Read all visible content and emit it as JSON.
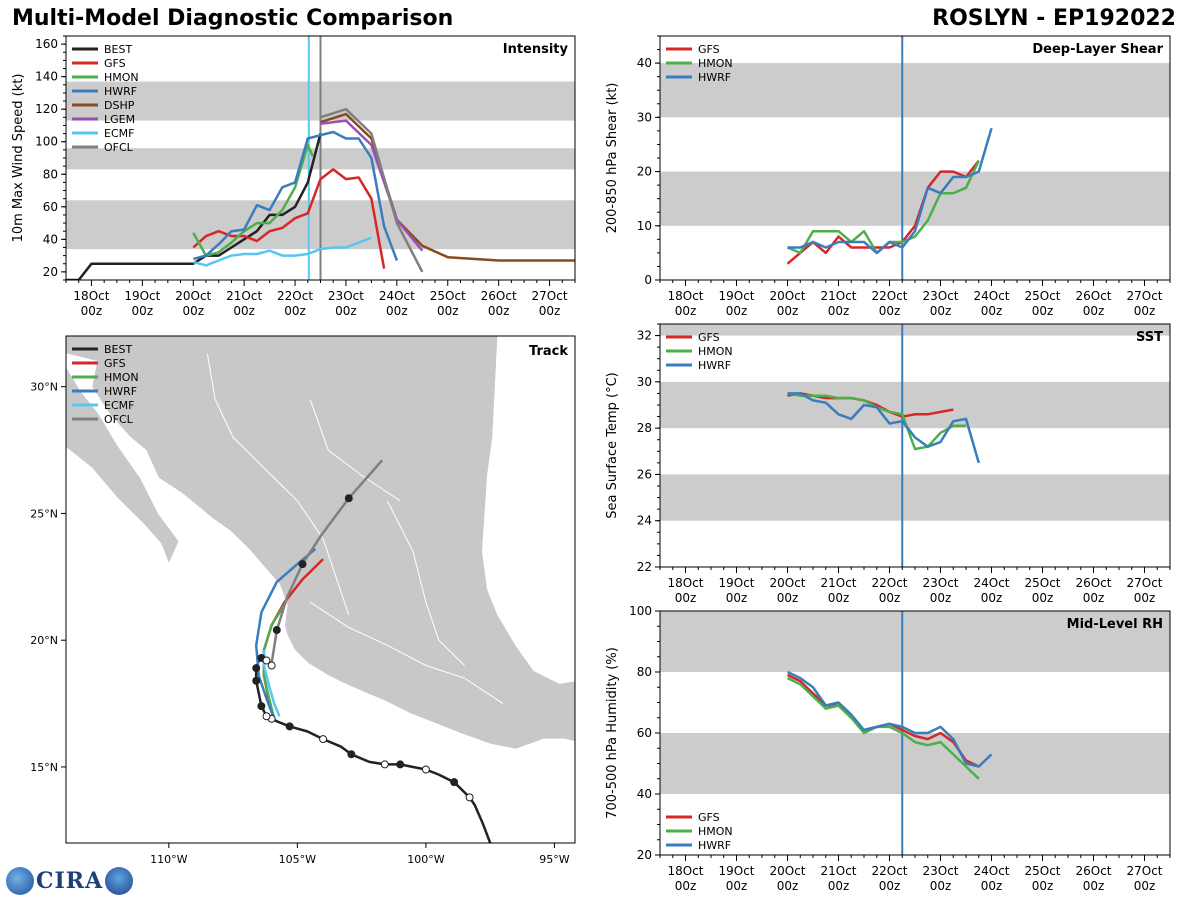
{
  "header": {
    "title": "Multi-Model Diagnostic Comparison",
    "storm": "ROSLYN - EP192022"
  },
  "logo": {
    "text": "CIRA"
  },
  "colors": {
    "BEST": "#222222",
    "GFS": "#d62728",
    "HMON": "#4daf4a",
    "HWRF": "#3a7dbd",
    "DSHP": "#8b4a1e",
    "LGEM": "#9b4fb4",
    "ECMF": "#56c8f0",
    "OFCL": "#7f7f7f",
    "band": "#cccccc",
    "land": "#c8c8c8",
    "border": "#ffffff"
  },
  "time_axis": {
    "labels": [
      "18Oct\n00z",
      "19Oct\n00z",
      "20Oct\n00z",
      "21Oct\n00z",
      "22Oct\n00z",
      "23Oct\n00z",
      "24Oct\n00z",
      "25Oct\n00z",
      "26Oct\n00z",
      "27Oct\n00z"
    ]
  },
  "chart_data": [
    {
      "id": "intensity",
      "type": "line",
      "title": "Intensity",
      "ylabel": "10m Max Wind Speed (kt)",
      "xlim": [
        -0.5,
        9.5
      ],
      "ylim": [
        15,
        165
      ],
      "yticks": [
        20,
        40,
        60,
        80,
        100,
        120,
        140,
        160
      ],
      "bands": [
        [
          34,
          64
        ],
        [
          83,
          96
        ],
        [
          113,
          137
        ]
      ],
      "vlines": [
        {
          "x": 4.27,
          "color": "ECMF"
        },
        {
          "x": 4.5,
          "color": "OFCL"
        }
      ],
      "legend": [
        "BEST",
        "GFS",
        "HMON",
        "HWRF",
        "DSHP",
        "LGEM",
        "ECMF",
        "OFCL"
      ],
      "series": [
        {
          "name": "BEST",
          "x": [
            -0.5,
            -0.25,
            0,
            0.25,
            0.5,
            0.75,
            1,
            1.25,
            1.5,
            1.75,
            2,
            2.25,
            2.5,
            2.75,
            3,
            3.25,
            3.5,
            3.75,
            4,
            4.25,
            4.5
          ],
          "y": [
            15,
            15,
            25,
            25,
            25,
            25,
            25,
            25,
            25,
            25,
            25,
            30,
            30,
            35,
            40,
            45,
            55,
            55,
            60,
            75,
            105
          ]
        },
        {
          "name": "GFS",
          "x": [
            2,
            2.25,
            2.5,
            2.75,
            3,
            3.25,
            3.5,
            3.75,
            4,
            4.25,
            4.5,
            4.75,
            5,
            5.25,
            5.5,
            5.75
          ],
          "y": [
            35,
            42,
            45,
            42,
            42,
            39,
            45,
            47,
            53,
            56,
            77,
            83,
            77,
            78,
            65,
            22
          ]
        },
        {
          "name": "HMON",
          "x": [
            2,
            2.25,
            2.5,
            2.75,
            3,
            3.25,
            3.5,
            3.75,
            4,
            4.25,
            4.35
          ],
          "y": [
            44,
            30,
            32,
            38,
            45,
            50,
            50,
            58,
            72,
            98,
            91
          ]
        },
        {
          "name": "HWRF",
          "x": [
            2,
            2.25,
            2.5,
            2.75,
            3,
            3.25,
            3.5,
            3.75,
            4,
            4.25,
            4.5,
            4.75,
            5,
            5.25,
            5.5,
            5.75,
            6
          ],
          "y": [
            28,
            30,
            37,
            45,
            46,
            61,
            58,
            72,
            75,
            102,
            104,
            106,
            102,
            102,
            90,
            48,
            27
          ]
        },
        {
          "name": "DSHP",
          "x": [
            4.5,
            5,
            5.5,
            6,
            6.5,
            7,
            7.5,
            8,
            8.5,
            9,
            9.5
          ],
          "y": [
            112,
            117,
            102,
            52,
            36,
            29,
            28,
            27,
            27,
            27,
            27
          ]
        },
        {
          "name": "LGEM",
          "x": [
            4.5,
            5,
            5.5,
            6,
            6.5
          ],
          "y": [
            111,
            113,
            98,
            52,
            33
          ]
        },
        {
          "name": "ECMF",
          "x": [
            2,
            2.25,
            2.5,
            2.75,
            3,
            3.25,
            3.5,
            3.75,
            4,
            4.25,
            4.5,
            4.75,
            5,
            5.25,
            5.5
          ],
          "y": [
            26,
            24,
            27,
            30,
            31,
            31,
            33,
            30,
            30,
            31,
            34,
            35,
            35,
            38,
            41
          ]
        },
        {
          "name": "OFCL",
          "x": [
            4.5,
            5,
            5.5,
            6,
            6.5
          ],
          "y": [
            115,
            120,
            105,
            50,
            20
          ]
        }
      ]
    },
    {
      "id": "shear",
      "type": "line",
      "title": "Deep-Layer Shear",
      "ylabel": "200-850 hPa Shear (kt)",
      "xlim": [
        -0.5,
        9.5
      ],
      "ylim": [
        0,
        45
      ],
      "yticks": [
        0,
        10,
        20,
        30,
        40
      ],
      "bands": [
        [
          10,
          20
        ],
        [
          30,
          40
        ]
      ],
      "vlines": [
        {
          "x": 4.25,
          "color": "HWRF"
        }
      ],
      "legend": [
        "GFS",
        "HMON",
        "HWRF"
      ],
      "series": [
        {
          "name": "GFS",
          "x": [
            2,
            2.25,
            2.5,
            2.75,
            3,
            3.25,
            3.5,
            3.75,
            4,
            4.25,
            4.5,
            4.75,
            5,
            5.25,
            5.5,
            5.75
          ],
          "y": [
            3,
            5,
            7,
            5,
            8,
            6,
            6,
            6,
            6,
            7,
            10,
            17,
            20,
            20,
            19,
            22
          ]
        },
        {
          "name": "HMON",
          "x": [
            2,
            2.25,
            2.5,
            2.75,
            3,
            3.25,
            3.5,
            3.75,
            4,
            4.25,
            4.5,
            4.75,
            5,
            5.25,
            5.5,
            5.75
          ],
          "y": [
            6,
            5,
            9,
            9,
            9,
            7,
            9,
            5,
            7,
            7,
            8,
            11,
            16,
            16,
            17,
            22
          ]
        },
        {
          "name": "HWRF",
          "x": [
            2,
            2.25,
            2.5,
            2.75,
            3,
            3.25,
            3.5,
            3.75,
            4,
            4.25,
            4.5,
            4.75,
            5,
            5.25,
            5.5,
            5.75,
            6
          ],
          "y": [
            6,
            6,
            7,
            6,
            7,
            7,
            7,
            5,
            7,
            6,
            9,
            17,
            16,
            19,
            19,
            20,
            28
          ]
        }
      ]
    },
    {
      "id": "sst",
      "type": "line",
      "title": "SST",
      "ylabel": "Sea Surface Temp (°C)",
      "xlim": [
        -0.5,
        9.5
      ],
      "ylim": [
        22,
        32.5
      ],
      "yticks": [
        22,
        24,
        26,
        28,
        30,
        32
      ],
      "bands": [
        [
          24,
          26
        ],
        [
          28,
          30
        ],
        [
          32,
          32.5
        ]
      ],
      "vlines": [
        {
          "x": 4.25,
          "color": "HWRF"
        }
      ],
      "legend": [
        "GFS",
        "HMON",
        "HWRF"
      ],
      "series": [
        {
          "name": "GFS",
          "x": [
            2,
            2.25,
            2.5,
            2.75,
            3,
            3.25,
            3.5,
            3.75,
            4,
            4.25,
            4.5,
            4.75,
            5,
            5.25
          ],
          "y": [
            29.4,
            29.5,
            29.4,
            29.3,
            29.3,
            29.3,
            29.2,
            29.0,
            28.7,
            28.5,
            28.6,
            28.6,
            28.7,
            28.8
          ]
        },
        {
          "name": "HMON",
          "x": [
            2,
            2.25,
            2.5,
            2.75,
            3,
            3.25,
            3.5,
            3.75,
            4,
            4.25,
            4.5,
            4.75,
            5,
            5.25,
            5.5
          ],
          "y": [
            29.5,
            29.4,
            29.4,
            29.4,
            29.3,
            29.3,
            29.2,
            28.9,
            28.7,
            28.6,
            27.1,
            27.2,
            27.8,
            28.1,
            28.1
          ]
        },
        {
          "name": "HWRF",
          "x": [
            2,
            2.25,
            2.5,
            2.75,
            3,
            3.25,
            3.5,
            3.75,
            4,
            4.25,
            4.5,
            4.75,
            5,
            5.25,
            5.5,
            5.75
          ],
          "y": [
            29.5,
            29.5,
            29.2,
            29.1,
            28.6,
            28.4,
            29.0,
            28.9,
            28.2,
            28.3,
            27.6,
            27.2,
            27.4,
            28.3,
            28.4,
            26.5
          ]
        }
      ]
    },
    {
      "id": "rh",
      "type": "line",
      "title": "Mid-Level RH",
      "ylabel": "700-500 hPa Humidity (%)",
      "xlim": [
        -0.5,
        9.5
      ],
      "ylim": [
        20,
        100
      ],
      "yticks": [
        20,
        40,
        60,
        80,
        100
      ],
      "bands": [
        [
          40,
          60
        ],
        [
          80,
          100
        ]
      ],
      "vlines": [
        {
          "x": 4.25,
          "color": "HWRF"
        }
      ],
      "legend": [
        "GFS",
        "HMON",
        "HWRF"
      ],
      "legend_pos": "bottom-left",
      "series": [
        {
          "name": "GFS",
          "x": [
            2,
            2.25,
            2.5,
            2.75,
            3,
            3.25,
            3.5,
            3.75,
            4,
            4.25,
            4.5,
            4.75,
            5,
            5.25,
            5.5,
            5.75
          ],
          "y": [
            79,
            77,
            73,
            69,
            69,
            65,
            61,
            62,
            63,
            61,
            59,
            58,
            60,
            57,
            51,
            49
          ]
        },
        {
          "name": "HMON",
          "x": [
            2,
            2.25,
            2.5,
            2.75,
            3,
            3.25,
            3.5,
            3.75,
            4,
            4.25,
            4.5,
            4.75,
            5,
            5.25,
            5.5,
            5.75
          ],
          "y": [
            78,
            76,
            72,
            68,
            69,
            65,
            60,
            62,
            62,
            60,
            57,
            56,
            57,
            53,
            49,
            45
          ]
        },
        {
          "name": "HWRF",
          "x": [
            2,
            2.25,
            2.5,
            2.75,
            3,
            3.25,
            3.5,
            3.75,
            4,
            4.25,
            4.5,
            4.75,
            5,
            5.25,
            5.5,
            5.75,
            6
          ],
          "y": [
            80,
            78,
            75,
            69,
            70,
            66,
            61,
            62,
            63,
            62,
            60,
            60,
            62,
            58,
            50,
            49,
            53
          ]
        }
      ]
    },
    {
      "id": "track",
      "type": "map",
      "title": "Track",
      "xlim": [
        -114,
        -94.2
      ],
      "ylim": [
        12,
        32
      ],
      "xticks": [
        -110,
        -105,
        -100,
        -95
      ],
      "xtick_labels": [
        "110°W",
        "105°W",
        "100°W",
        "95°W"
      ],
      "yticks": [
        15,
        20,
        25,
        30
      ],
      "ytick_labels": [
        "15°N",
        "20°N",
        "25°N",
        "30°N"
      ],
      "legend": [
        "BEST",
        "GFS",
        "HMON",
        "HWRF",
        "ECMF",
        "OFCL"
      ],
      "series": [
        {
          "name": "BEST",
          "lon": [
            -97.5,
            -97.8,
            -98.1,
            -98.3,
            -98.9,
            -99.5,
            -100.0,
            -100.5,
            -101.0,
            -101.6,
            -102.2,
            -102.9,
            -103.3,
            -104.0,
            -104.6,
            -105.3,
            -105.8,
            -106.0,
            -106.2,
            -106.4,
            -106.5,
            -106.6,
            -106.6,
            -106.5,
            -106.4,
            -106.2,
            -106.0
          ],
          "lat": [
            12.0,
            12.8,
            13.5,
            13.8,
            14.4,
            14.7,
            14.9,
            15.0,
            15.1,
            15.1,
            15.2,
            15.5,
            15.8,
            16.1,
            16.4,
            16.6,
            16.8,
            16.9,
            17.0,
            17.4,
            17.9,
            18.4,
            18.9,
            19.2,
            19.3,
            19.2,
            19.0
          ],
          "filled": [
            -98.9,
            -101.0,
            -102.9,
            -105.3,
            -106.6,
            -106.4
          ],
          "hollow": [
            -98.3,
            -100.0,
            -101.6,
            -104.0,
            -106.0,
            -106.2
          ]
        },
        {
          "name": "GFS",
          "lon": [
            -105.9,
            -106.1,
            -106.3,
            -106.3,
            -106.0,
            -105.5,
            -104.8,
            -104.0
          ],
          "lat": [
            16.8,
            17.6,
            18.6,
            19.6,
            20.6,
            21.5,
            22.4,
            23.2
          ]
        },
        {
          "name": "HMON",
          "lon": [
            -105.9,
            -106.1,
            -106.3,
            -106.3,
            -106.0,
            -105.5
          ],
          "lat": [
            16.9,
            17.7,
            18.6,
            19.6,
            20.6,
            21.4
          ]
        },
        {
          "name": "HWRF",
          "lon": [
            -105.9,
            -106.2,
            -106.5,
            -106.6,
            -106.4,
            -105.8,
            -105.0,
            -104.3
          ],
          "lat": [
            16.9,
            17.7,
            18.6,
            19.8,
            21.1,
            22.3,
            23.0,
            23.6
          ]
        },
        {
          "name": "ECMF",
          "lon": [
            -105.7,
            -105.9,
            -106.1,
            -106.3,
            -106.3
          ],
          "lat": [
            17.0,
            17.5,
            18.2,
            19.0,
            19.6
          ]
        },
        {
          "name": "OFCL",
          "lon": [
            -106.0,
            -105.8,
            -105.4,
            -104.8,
            -104.1,
            -103.0,
            -101.7
          ],
          "lat": [
            19.1,
            20.4,
            21.7,
            23.0,
            24.1,
            25.6,
            27.1
          ]
        }
      ]
    }
  ]
}
